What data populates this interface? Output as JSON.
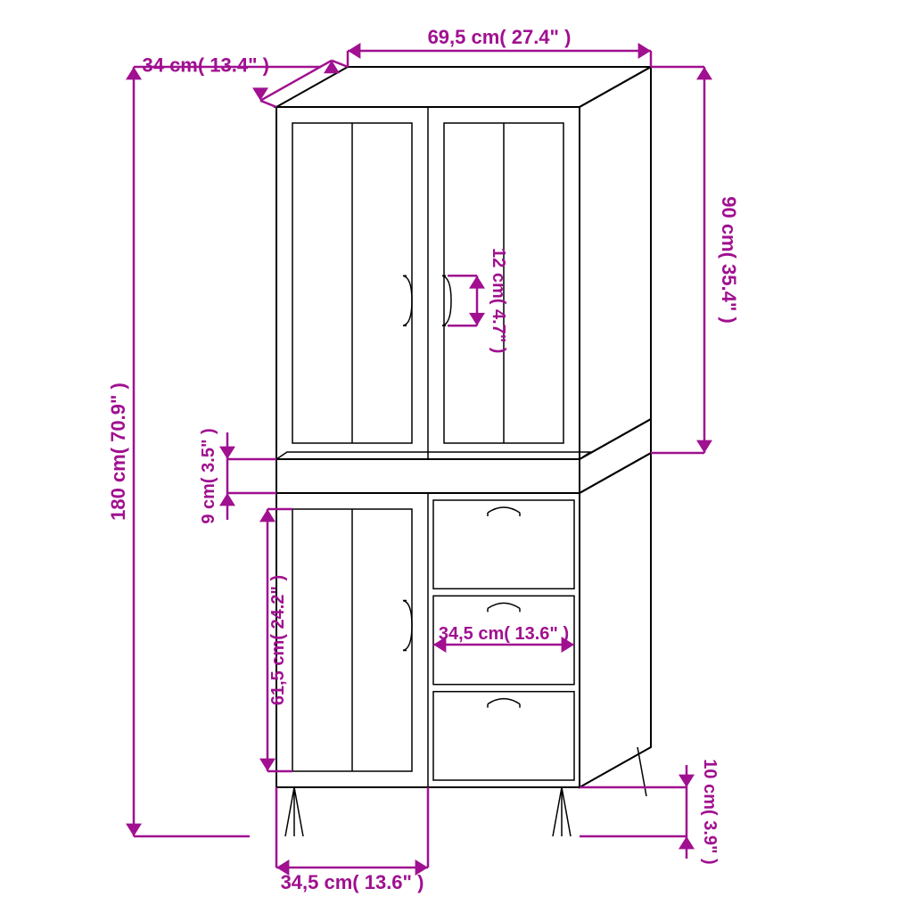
{
  "colors": {
    "dimension": "#a01090",
    "outline": "#000000",
    "background": "#ffffff"
  },
  "typography": {
    "label_fontsize": 22,
    "label_fontweight": 600,
    "font_family": "Arial"
  },
  "diagram": {
    "type": "dimensioned-drawing",
    "subject": "tall-cabinet",
    "aspect": "1:1"
  },
  "dims": {
    "depth": "34 cm( 13.4\" )",
    "width": "69,5 cm( 27.4\" )",
    "height_total": "180 cm( 70.9\" )",
    "upper_height": "90 cm( 35.4\" )",
    "handle_len": "12 cm( 4.7\" )",
    "gap": "9 cm( 3.5\" )",
    "lower_door_h": "61,5 cm( 24.2\" )",
    "drawer_w": "34,5 cm( 13.6\" )",
    "lower_w": "34,5 cm( 13.6\" )",
    "leg_h": "10 cm( 3.9\" )"
  }
}
